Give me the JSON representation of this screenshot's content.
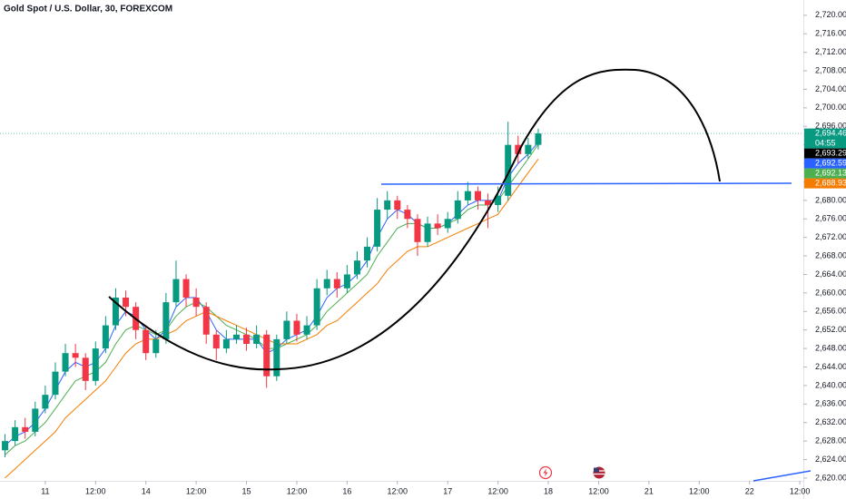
{
  "chart_data": {
    "type": "candlestick",
    "title": "Gold Spot / U.S. Dollar, 30, FOREXCOM",
    "up_color": "#089981",
    "down_color": "#f23645",
    "x": [
      -0.8,
      -0.6,
      -0.4,
      -0.2,
      0,
      0.2,
      0.4,
      0.6,
      0.8,
      1,
      1.2,
      1.4,
      1.6,
      1.8,
      2,
      2.2,
      2.4,
      2.6,
      2.8,
      3,
      3.2,
      3.4,
      3.6,
      3.8,
      4,
      4.2,
      4.4,
      4.6,
      4.8,
      5,
      5.2,
      5.4,
      5.6,
      5.8,
      6,
      6.2,
      6.4,
      6.6,
      6.8,
      7,
      7.2,
      7.4,
      7.6,
      7.8,
      8,
      8.2,
      8.4,
      8.6,
      8.8,
      9,
      9.2,
      9.4,
      9.6,
      9.8
    ],
    "open": [
      2626,
      2628,
      2631,
      2630,
      2635,
      2638,
      2643,
      2647,
      2646,
      2641,
      2648,
      2653,
      2659,
      2657,
      2652,
      2647,
      2650,
      2658,
      2663,
      2659,
      2657,
      2651,
      2648,
      2650,
      2651,
      2649,
      2651,
      2642,
      2650,
      2654,
      2651,
      2653,
      2661,
      2663,
      2661,
      2664,
      2667,
      2670,
      2678,
      2680,
      2678,
      2676,
      2671,
      2675,
      2674,
      2676,
      2680,
      2682,
      2680,
      2679,
      2681,
      2692,
      2690,
      2692
    ],
    "high": [
      2629.5,
      2632.5,
      2633,
      2636.5,
      2640,
      2645,
      2649,
      2649,
      2647,
      2649.5,
      2655,
      2661,
      2660.5,
      2658,
      2653,
      2652,
      2660,
      2667,
      2664,
      2661,
      2658,
      2652,
      2652,
      2653,
      2652.5,
      2653,
      2652,
      2651,
      2656,
      2655.5,
      2655,
      2663,
      2665,
      2664.5,
      2666,
      2669,
      2672,
      2680.5,
      2682,
      2681,
      2679,
      2677,
      2676.5,
      2677,
      2677.5,
      2682,
      2684,
      2683,
      2681.5,
      2683,
      2697,
      2694,
      2693.5,
      2695.5
    ],
    "low": [
      2624.5,
      2627,
      2628.5,
      2629,
      2634,
      2637,
      2642,
      2644,
      2639,
      2640,
      2647,
      2652,
      2655,
      2650,
      2645.5,
      2646,
      2649,
      2657,
      2657,
      2655,
      2649,
      2645.5,
      2647,
      2649,
      2647.5,
      2648,
      2639.5,
      2641,
      2649,
      2649.5,
      2650,
      2652,
      2659.5,
      2659,
      2660,
      2663,
      2665.5,
      2669,
      2676,
      2676,
      2674,
      2668,
      2670,
      2672.5,
      2673,
      2675,
      2679,
      2678,
      2674,
      2677.5,
      2680,
      2688,
      2689,
      2691
    ],
    "close": [
      2628,
      2631,
      2630,
      2635,
      2638,
      2643,
      2647,
      2646,
      2641,
      2648,
      2653,
      2659,
      2657,
      2652,
      2647,
      2650,
      2658,
      2663,
      2659,
      2657,
      2651,
      2648,
      2650,
      2651,
      2649,
      2651,
      2642,
      2650,
      2654,
      2651,
      2653,
      2661,
      2663,
      2661,
      2664,
      2667,
      2670,
      2678,
      2680,
      2678,
      2676,
      2671,
      2675,
      2674,
      2676,
      2680,
      2682,
      2680,
      2679,
      2681,
      2692,
      2690,
      2692,
      2694.46
    ],
    "lines": [
      {
        "color": "#2962ff",
        "values": [
          2627,
          2629,
          2630,
          2632,
          2635,
          2639,
          2643,
          2645,
          2644,
          2645,
          2648,
          2653,
          2656,
          2655,
          2652,
          2650,
          2652,
          2657,
          2659,
          2659,
          2656,
          2652,
          2650,
          2650,
          2650,
          2650,
          2647,
          2648,
          2650,
          2651,
          2652,
          2655,
          2659,
          2661,
          2662,
          2664,
          2667,
          2672,
          2676,
          2678,
          2677,
          2675,
          2674,
          2674,
          2675,
          2677,
          2679,
          2680,
          2680,
          2680,
          2685,
          2688,
          2690,
          2692.59
        ]
      },
      {
        "color": "#4caf50",
        "values": [
          2625,
          2627,
          2628,
          2630,
          2632,
          2635,
          2638,
          2641,
          2642,
          2643,
          2645,
          2649,
          2652,
          2653,
          2652,
          2651,
          2652,
          2655,
          2657,
          2658,
          2657,
          2655,
          2653,
          2652,
          2651,
          2650,
          2648,
          2648,
          2649,
          2650,
          2651,
          2653,
          2656,
          2658,
          2660,
          2662,
          2664,
          2668,
          2671,
          2674,
          2675,
          2675,
          2674,
          2674,
          2675,
          2676,
          2678,
          2679,
          2679,
          2680,
          2683,
          2686,
          2689,
          2692.13
        ]
      },
      {
        "color": "#f57c00",
        "values": [
          2620,
          2622,
          2624,
          2626,
          2628,
          2630,
          2633,
          2635,
          2637,
          2639,
          2641,
          2644,
          2647,
          2649,
          2650,
          2650,
          2651,
          2652,
          2654,
          2655,
          2656,
          2655,
          2654,
          2653,
          2652,
          2651,
          2650,
          2649,
          2649,
          2649,
          2650,
          2651,
          2653,
          2654,
          2656,
          2658,
          2660,
          2662,
          2665,
          2667,
          2669,
          2670,
          2670,
          2671,
          2672,
          2673,
          2674,
          2675,
          2676,
          2677,
          2680,
          2683,
          2686,
          2688.93
        ]
      }
    ],
    "countdown": "04:55",
    "price_labels": [
      {
        "value": 2694.46,
        "label": "2,694.46",
        "color": "#089981"
      },
      {
        "value": 2693.29,
        "label": "2,693.29",
        "color": "#000000"
      },
      {
        "value": 2692.59,
        "label": "2,692.59",
        "color": "#2962ff"
      },
      {
        "value": 2692.13,
        "label": "2,692.13",
        "color": "#4caf50"
      },
      {
        "value": 2688.93,
        "label": "2,688.93",
        "color": "#f57c00"
      }
    ],
    "xlim": [
      -0.9,
      15.07
    ],
    "ylim": [
      2619.4,
      2723.3
    ],
    "xticks": [
      {
        "value": 0,
        "label": "11"
      },
      {
        "value": 1,
        "label": "12:00"
      },
      {
        "value": 2,
        "label": "14"
      },
      {
        "value": 3,
        "label": "12:00"
      },
      {
        "value": 4,
        "label": "15"
      },
      {
        "value": 5,
        "label": "12:00"
      },
      {
        "value": 6,
        "label": "16"
      },
      {
        "value": 7,
        "label": "12:00"
      },
      {
        "value": 8,
        "label": "17"
      },
      {
        "value": 9,
        "label": "12:00"
      },
      {
        "value": 10,
        "label": "18"
      },
      {
        "value": 11,
        "label": "12:00"
      },
      {
        "value": 12,
        "label": "21"
      },
      {
        "value": 13,
        "label": "12:00"
      },
      {
        "value": 14,
        "label": "22"
      },
      {
        "value": 15,
        "label": "12:00"
      }
    ],
    "yticks": [
      {
        "value": 2620,
        "label": "2,620.00"
      },
      {
        "value": 2624,
        "label": "2,624.00"
      },
      {
        "value": 2628,
        "label": "2,628.00"
      },
      {
        "value": 2632,
        "label": "2,632.00"
      },
      {
        "value": 2636,
        "label": "2,636.00"
      },
      {
        "value": 2640,
        "label": "2,640.00"
      },
      {
        "value": 2644,
        "label": "2,644.00"
      },
      {
        "value": 2648,
        "label": "2,648.00"
      },
      {
        "value": 2652,
        "label": "2,652.00"
      },
      {
        "value": 2656,
        "label": "2,656.00"
      },
      {
        "value": 2660,
        "label": "2,660.00"
      },
      {
        "value": 2664,
        "label": "2,664.00"
      },
      {
        "value": 2668,
        "label": "2,668.00"
      },
      {
        "value": 2672,
        "label": "2,672.00"
      },
      {
        "value": 2676,
        "label": "2,676.00"
      },
      {
        "value": 2680,
        "label": "2,680.00"
      },
      {
        "value": 2684,
        "label": "2,684.00"
      },
      {
        "value": 2688,
        "label": "2,688.00"
      },
      {
        "value": 2692,
        "label": "2,692.00"
      },
      {
        "value": 2696,
        "label": "2,696.00"
      },
      {
        "value": 2700,
        "label": "2,700.00"
      },
      {
        "value": 2704,
        "label": "2,704.00"
      },
      {
        "value": 2708,
        "label": "2,708.00"
      },
      {
        "value": 2712,
        "label": "2,712.00"
      },
      {
        "value": 2716,
        "label": "2,716.00"
      },
      {
        "value": 2720,
        "label": "2,720.00"
      }
    ]
  }
}
